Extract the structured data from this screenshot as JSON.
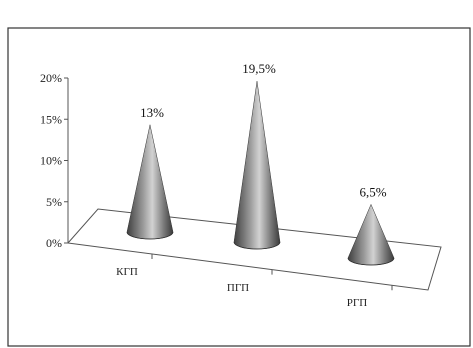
{
  "chart_data": {
    "type": "bar",
    "style": "3d-cone",
    "categories": [
      "КГП",
      "ПГП",
      "РГП"
    ],
    "values": [
      13,
      19.5,
      6.5
    ],
    "data_labels": [
      "13%",
      "19,5%",
      "6,5%"
    ],
    "yticks": [
      "0%",
      "5%",
      "10%",
      "15%",
      "20%"
    ],
    "ylim": [
      0,
      20
    ],
    "title": "",
    "xlabel": "",
    "ylabel": "",
    "legend": "none",
    "grid": false,
    "colors": {
      "cone": "#6f6f6f",
      "cone_highlight": "#d6d6d6",
      "cone_shadow": "#3a3a3a",
      "axis": "#555555",
      "frame": "#333333"
    }
  }
}
